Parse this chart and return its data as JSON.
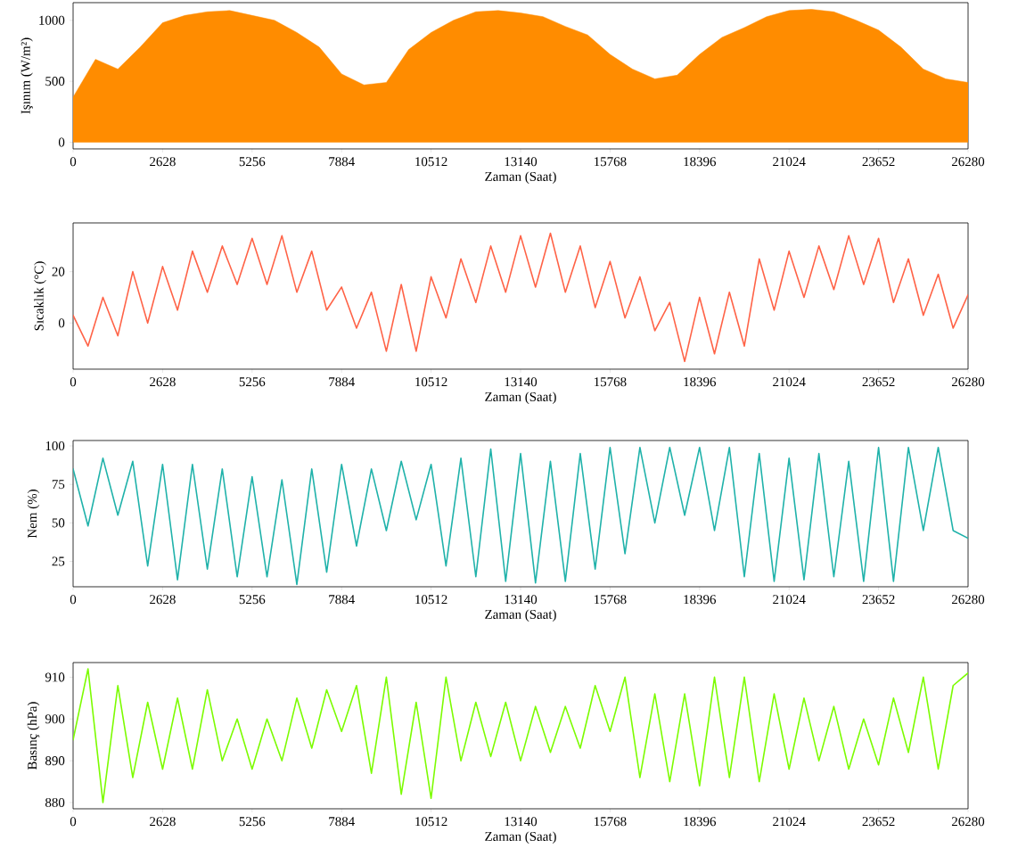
{
  "chart_data": [
    {
      "type": "area",
      "xlabel": "Zaman (Saat)",
      "ylabel": "Işınım (W/m²)",
      "color": "#ff8c00",
      "x": [
        0,
        657,
        1314,
        1971,
        2628,
        3285,
        3942,
        4599,
        5256,
        5913,
        6570,
        7227,
        7884,
        8541,
        9198,
        9855,
        10512,
        11169,
        11826,
        12483,
        13140,
        13797,
        14454,
        15111,
        15768,
        16425,
        17082,
        17739,
        18396,
        19053,
        19710,
        20367,
        21024,
        21681,
        22338,
        22995,
        23652,
        24309,
        24966,
        25623,
        26280
      ],
      "values": [
        370,
        680,
        600,
        780,
        980,
        1040,
        1070,
        1080,
        1040,
        1000,
        900,
        780,
        560,
        470,
        490,
        760,
        900,
        1000,
        1070,
        1080,
        1060,
        1030,
        950,
        880,
        720,
        600,
        520,
        550,
        720,
        860,
        940,
        1030,
        1080,
        1090,
        1070,
        1000,
        920,
        780,
        600,
        520,
        490
      ],
      "xlim": [
        0,
        26280
      ],
      "ylim": [
        -55,
        1145
      ],
      "xticks": [
        0,
        2628,
        5256,
        7884,
        10512,
        13140,
        15768,
        18396,
        21024,
        23652,
        26280
      ],
      "yticks": [
        0,
        500,
        1000
      ]
    },
    {
      "type": "line",
      "xlabel": "Zaman (Saat)",
      "ylabel": "Sıcaklık (°C)",
      "color": "#ff6347",
      "x": [
        0,
        438,
        876,
        1314,
        1752,
        2190,
        2628,
        3066,
        3504,
        3942,
        4380,
        4818,
        5256,
        5694,
        6132,
        6570,
        7008,
        7446,
        7884,
        8322,
        8760,
        9198,
        9636,
        10074,
        10512,
        10950,
        11388,
        11826,
        12264,
        12702,
        13140,
        13578,
        14016,
        14454,
        14892,
        15330,
        15768,
        16206,
        16644,
        17082,
        17520,
        17958,
        18396,
        18834,
        19272,
        19710,
        20148,
        20586,
        21024,
        21462,
        21900,
        22338,
        22776,
        23214,
        23652,
        24090,
        24528,
        24966,
        25404,
        25842,
        26280
      ],
      "values": [
        3,
        -9,
        10,
        -5,
        20,
        0,
        22,
        5,
        28,
        12,
        30,
        15,
        33,
        15,
        34,
        12,
        28,
        5,
        14,
        -2,
        12,
        -11,
        15,
        -11,
        18,
        2,
        25,
        8,
        30,
        12,
        34,
        14,
        35,
        12,
        30,
        6,
        24,
        2,
        18,
        -3,
        8,
        -15,
        10,
        -12,
        12,
        -9,
        25,
        5,
        28,
        10,
        30,
        13,
        34,
        15,
        33,
        8,
        25,
        3,
        19,
        -2,
        11
      ],
      "xlim": [
        0,
        26280
      ],
      "ylim": [
        -18,
        39
      ],
      "xticks": [
        0,
        2628,
        5256,
        7884,
        10512,
        13140,
        15768,
        18396,
        21024,
        23652,
        26280
      ],
      "yticks": [
        0,
        20
      ]
    },
    {
      "type": "line",
      "xlabel": "Zaman (Saat)",
      "ylabel": "Nem (%)",
      "color": "#20b2aa",
      "x": [
        0,
        438,
        876,
        1314,
        1752,
        2190,
        2628,
        3066,
        3504,
        3942,
        4380,
        4818,
        5256,
        5694,
        6132,
        6570,
        7008,
        7446,
        7884,
        8322,
        8760,
        9198,
        9636,
        10074,
        10512,
        10950,
        11388,
        11826,
        12264,
        12702,
        13140,
        13578,
        14016,
        14454,
        14892,
        15330,
        15768,
        16206,
        16644,
        17082,
        17520,
        17958,
        18396,
        18834,
        19272,
        19710,
        20148,
        20586,
        21024,
        21462,
        21900,
        22338,
        22776,
        23214,
        23652,
        24090,
        24528,
        24966,
        25404,
        25842,
        26280
      ],
      "values": [
        85,
        48,
        92,
        55,
        90,
        22,
        88,
        13,
        88,
        20,
        85,
        15,
        80,
        15,
        78,
        10,
        85,
        18,
        88,
        35,
        85,
        45,
        90,
        52,
        88,
        22,
        92,
        15,
        98,
        12,
        95,
        11,
        90,
        12,
        95,
        20,
        99,
        30,
        99,
        50,
        99,
        55,
        99,
        45,
        99,
        15,
        95,
        12,
        92,
        13,
        95,
        15,
        90,
        12,
        99,
        12,
        99,
        45,
        99,
        45,
        40
      ],
      "xlim": [
        0,
        26280
      ],
      "ylim": [
        8.5,
        103.5
      ],
      "xticks": [
        0,
        2628,
        5256,
        7884,
        10512,
        13140,
        15768,
        18396,
        21024,
        23652,
        26280
      ],
      "yticks": [
        25,
        50,
        75,
        100
      ]
    },
    {
      "type": "line",
      "xlabel": "Zaman (Saat)",
      "ylabel": "Basınç (hPa)",
      "color": "#7cfc00",
      "x": [
        0,
        438,
        876,
        1314,
        1752,
        2190,
        2628,
        3066,
        3504,
        3942,
        4380,
        4818,
        5256,
        5694,
        6132,
        6570,
        7008,
        7446,
        7884,
        8322,
        8760,
        9198,
        9636,
        10074,
        10512,
        10950,
        11388,
        11826,
        12264,
        12702,
        13140,
        13578,
        14016,
        14454,
        14892,
        15330,
        15768,
        16206,
        16644,
        17082,
        17520,
        17958,
        18396,
        18834,
        19272,
        19710,
        20148,
        20586,
        21024,
        21462,
        21900,
        22338,
        22776,
        23214,
        23652,
        24090,
        24528,
        24966,
        25404,
        25842,
        26280
      ],
      "values": [
        895,
        912,
        880,
        908,
        886,
        904,
        888,
        905,
        888,
        907,
        890,
        900,
        888,
        900,
        890,
        905,
        893,
        907,
        897,
        908,
        887,
        910,
        882,
        904,
        881,
        910,
        890,
        904,
        891,
        904,
        890,
        903,
        892,
        903,
        893,
        908,
        897,
        910,
        886,
        906,
        885,
        906,
        884,
        910,
        886,
        910,
        885,
        906,
        888,
        905,
        890,
        903,
        888,
        900,
        889,
        905,
        892,
        910,
        888,
        908,
        911
      ],
      "xlim": [
        0,
        26280
      ],
      "ylim": [
        878.5,
        913.5
      ],
      "xticks": [
        0,
        2628,
        5256,
        7884,
        10512,
        13140,
        15768,
        18396,
        21024,
        23652,
        26280
      ],
      "yticks": [
        880,
        890,
        900,
        910
      ]
    }
  ]
}
